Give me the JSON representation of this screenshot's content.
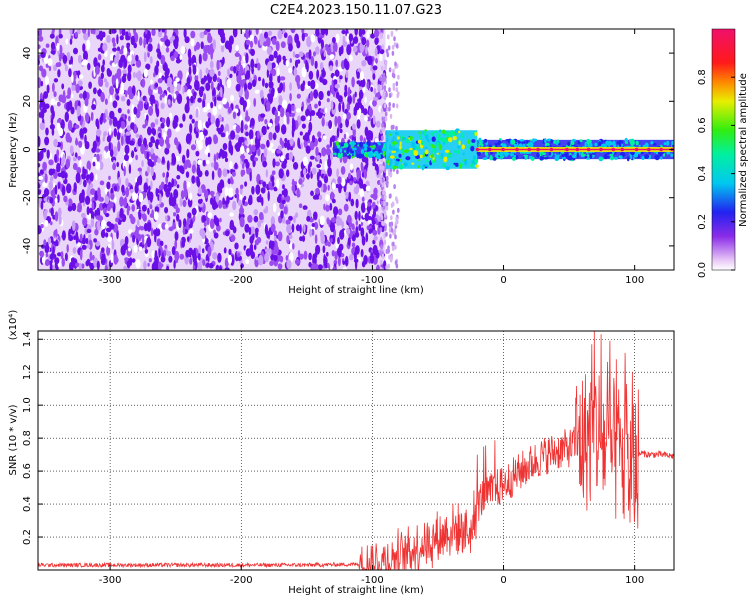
{
  "title": "C2E4.2023.150.11.07.G23",
  "chart_data": [
    {
      "type": "heatmap",
      "xlabel": "Height of straight line (km)",
      "ylabel": "Frequency (Hz)",
      "xlim": [
        -355,
        130
      ],
      "ylim": [
        -50,
        50
      ],
      "x_ticks": [
        -300,
        -200,
        -100,
        0,
        100
      ],
      "y_ticks": [
        -40,
        -20,
        0,
        20,
        40
      ],
      "colorbar": {
        "label": "Normalized spectral amplitude",
        "range": [
          0.0,
          1.0
        ],
        "ticks": [
          0.0,
          0.2,
          0.4,
          0.6,
          0.8
        ],
        "colormap": "white-violet-blue-cyan-green-yellow-red-magenta"
      },
      "regions": [
        {
          "x": [
            -355,
            -90
          ],
          "freq": [
            -50,
            50
          ],
          "amplitude": 0.25
        },
        {
          "x": [
            -130,
            -90
          ],
          "freq": [
            -3,
            3
          ],
          "amplitude": 0.35
        },
        {
          "x": [
            -90,
            -20
          ],
          "freq": [
            -8,
            8
          ],
          "amplitude": 0.45
        },
        {
          "x": [
            -20,
            130
          ],
          "freq": [
            -4,
            4
          ],
          "amplitude": 0.3
        },
        {
          "x": [
            -20,
            130
          ],
          "freq": [
            -1,
            1
          ],
          "amplitude": 0.9
        }
      ]
    },
    {
      "type": "line",
      "xlabel": "Height of straight line (km)",
      "ylabel": "SNR (10 * v/v)",
      "y_scale_label": "(x10⁴)",
      "xlim": [
        -355,
        130
      ],
      "ylim": [
        0,
        1.45
      ],
      "x_ticks": [
        -300,
        -200,
        -100,
        0,
        100
      ],
      "y_ticks": [
        0.2,
        0.4,
        0.6,
        0.8,
        1.0,
        1.2,
        1.4
      ],
      "series": [
        {
          "color": "#ef3333",
          "x": [
            -355,
            -300,
            -250,
            -200,
            -150,
            -110,
            -95,
            -80,
            -70,
            -60,
            -50,
            -40,
            -30,
            -25,
            -20,
            -15,
            -10,
            0,
            10,
            20,
            30,
            40,
            50,
            60,
            65,
            70,
            75,
            80,
            85,
            90,
            95,
            100,
            103,
            105,
            110,
            120,
            130
          ],
          "y": [
            0.03,
            0.03,
            0.03,
            0.03,
            0.03,
            0.035,
            0.04,
            0.08,
            0.12,
            0.16,
            0.2,
            0.24,
            0.25,
            0.22,
            0.4,
            0.45,
            0.47,
            0.52,
            0.58,
            0.64,
            0.69,
            0.72,
            0.74,
            0.78,
            0.8,
            0.85,
            0.8,
            0.7,
            0.72,
            0.68,
            0.6,
            0.62,
            0.7,
            0.71,
            0.7,
            0.7,
            0.69
          ]
        }
      ]
    }
  ]
}
